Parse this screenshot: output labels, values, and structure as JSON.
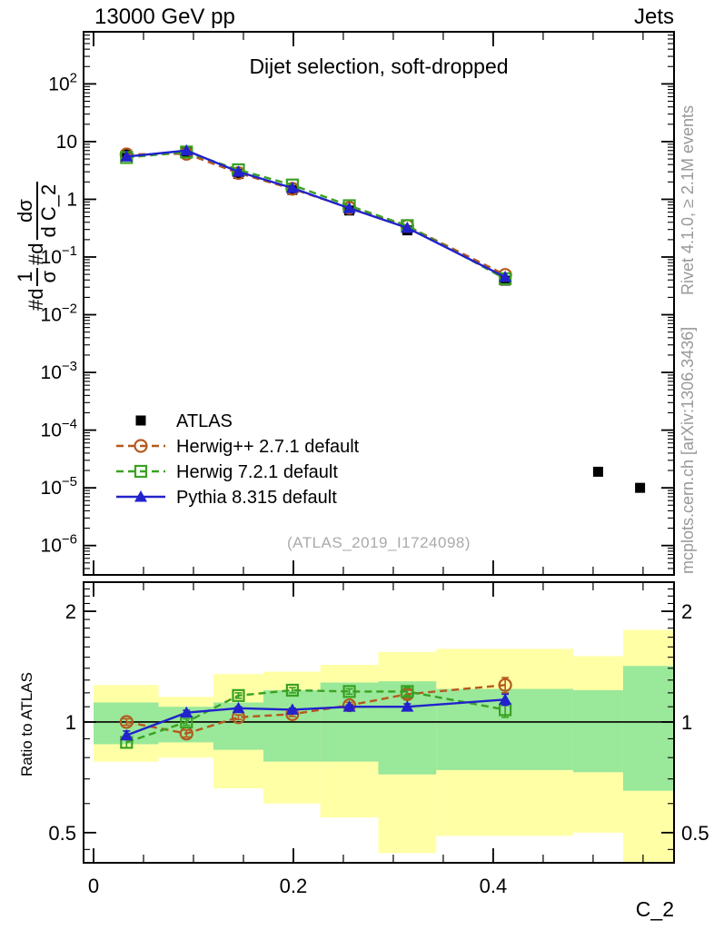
{
  "header": {
    "left": "13000 GeV pp",
    "right": "Jets"
  },
  "panel_title": "Dijet selection, soft-dropped",
  "watermark": "(ATLAS_2019_I1724098)",
  "side_notes": {
    "top_right": "Rivet 4.1.0, ≥ 2.1M events",
    "bottom_right": "mcplots.cern.ch [arXiv:1306.3436]"
  },
  "ylabel_parts": {
    "t1": "#d",
    "f1_num": "1",
    "f1_den": "σ",
    "t2": "#d",
    "f2_num": "dσ",
    "f2_den": "d C_2"
  },
  "ratio_ylabel": "Ratio to ATLAS",
  "xlabel": "C_2",
  "colors": {
    "atlas": "#000000",
    "herwigpp": "#b4591e",
    "herwig7": "#3aa122",
    "pythia": "#2222cc",
    "band_yellow": "#ffffa6",
    "band_green": "#9ae89a",
    "ref_line": "#000000",
    "note_gray": "#999999",
    "watermark_gray": "#aaaaaa"
  },
  "legend": [
    {
      "label": "ATLAS",
      "marker": "square_filled",
      "line": "none",
      "color_key": "atlas"
    },
    {
      "label": "Herwig++ 2.7.1 default",
      "marker": "circle_open",
      "line": "dashed",
      "color_key": "herwigpp"
    },
    {
      "label": "Herwig 7.2.1 default",
      "marker": "square_open",
      "line": "dashed",
      "color_key": "herwig7"
    },
    {
      "label": "Pythia 8.315 default",
      "marker": "triangle_filled",
      "line": "solid",
      "color_key": "pythia"
    }
  ],
  "chart_data": {
    "type": "line",
    "title": "Dijet selection, soft-dropped",
    "xlabel": "C_2",
    "ylabel": "1/sigma dsigma/dC_2",
    "main_panel": {
      "x_range": [
        -0.01,
        0.581
      ],
      "y_log_range": [
        3.1e-07,
        800
      ],
      "xticks": [
        {
          "v": 0,
          "label": "0"
        },
        {
          "v": 0.2,
          "label": "0.2"
        },
        {
          "v": 0.4,
          "label": "0.4"
        }
      ],
      "minor_x_step": 0.05,
      "yticks": [
        {
          "v": 100,
          "base": "10",
          "sup": "2"
        },
        {
          "v": 10,
          "base": "10",
          "sup": ""
        },
        {
          "v": 1,
          "base": "1",
          "sup": ""
        },
        {
          "v": 0.1,
          "base": "10",
          "sup": "−1"
        },
        {
          "v": 0.01,
          "base": "10",
          "sup": "−2"
        },
        {
          "v": 0.001,
          "base": "10",
          "sup": "−3"
        },
        {
          "v": 0.0001,
          "base": "10",
          "sup": "−4"
        },
        {
          "v": 1e-05,
          "base": "10",
          "sup": "−5"
        },
        {
          "v": 1e-06,
          "base": "10",
          "sup": "−6"
        }
      ],
      "series": [
        {
          "name": "ATLAS",
          "color_key": "atlas",
          "marker": "square_filled",
          "line": "none",
          "x": [
            0.033,
            0.093,
            0.145,
            0.199,
            0.256,
            0.314,
            0.412,
            0.505,
            0.547
          ],
          "y": [
            6.0,
            6.6,
            2.75,
            1.45,
            0.64,
            0.29,
            0.039,
            1.9e-05,
            1e-05
          ]
        },
        {
          "name": "Herwig++ 2.7.1 default",
          "color_key": "herwigpp",
          "marker": "circle_open",
          "line": "dashed",
          "x": [
            0.033,
            0.093,
            0.145,
            0.199,
            0.256,
            0.314,
            0.412
          ],
          "y": [
            6.0,
            6.15,
            2.85,
            1.52,
            0.71,
            0.345,
            0.049
          ]
        },
        {
          "name": "Herwig 7.2.1 default",
          "color_key": "herwig7",
          "marker": "square_open",
          "line": "dashed",
          "x": [
            0.033,
            0.093,
            0.145,
            0.199,
            0.256,
            0.314,
            0.412
          ],
          "y": [
            5.3,
            6.6,
            3.25,
            1.77,
            0.775,
            0.35,
            0.042
          ]
        },
        {
          "name": "Pythia 8.315 default",
          "color_key": "pythia",
          "marker": "triangle_filled",
          "line": "solid",
          "x": [
            0.033,
            0.093,
            0.145,
            0.199,
            0.256,
            0.314,
            0.412
          ],
          "y": [
            5.5,
            7.0,
            3.0,
            1.57,
            0.7,
            0.32,
            0.045
          ]
        }
      ]
    },
    "ratio_panel": {
      "y_log_range": [
        0.414,
        2.4
      ],
      "ref_line": 1,
      "yticks": [
        {
          "v": 2,
          "label": "2"
        },
        {
          "v": 1,
          "label": "1"
        },
        {
          "v": 0.5,
          "label": "0.5"
        }
      ],
      "minor_yticks": [
        0.45,
        0.6,
        0.7,
        0.8,
        0.9,
        1.1,
        1.2,
        1.3,
        1.4,
        1.5,
        1.6,
        1.7,
        1.8,
        1.9,
        2.1,
        2.2,
        2.3
      ],
      "bands": [
        {
          "x0": 0.0,
          "x1": 0.065,
          "yellow": [
            0.78,
            1.26
          ],
          "green": [
            0.87,
            1.13
          ]
        },
        {
          "x0": 0.065,
          "x1": 0.12,
          "yellow": [
            0.8,
            1.17
          ],
          "green": [
            0.88,
            1.1
          ]
        },
        {
          "x0": 0.12,
          "x1": 0.17,
          "yellow": [
            0.66,
            1.35
          ],
          "green": [
            0.84,
            1.13
          ]
        },
        {
          "x0": 0.17,
          "x1": 0.227,
          "yellow": [
            0.6,
            1.37
          ],
          "green": [
            0.78,
            1.22
          ]
        },
        {
          "x0": 0.227,
          "x1": 0.285,
          "yellow": [
            0.55,
            1.43
          ],
          "green": [
            0.78,
            1.28
          ]
        },
        {
          "x0": 0.285,
          "x1": 0.343,
          "yellow": [
            0.44,
            1.55
          ],
          "green": [
            0.72,
            1.29
          ]
        },
        {
          "x0": 0.343,
          "x1": 0.48,
          "yellow": [
            0.49,
            1.58
          ],
          "green": [
            0.74,
            1.23
          ]
        },
        {
          "x0": 0.48,
          "x1": 0.53,
          "yellow": [
            0.5,
            1.51
          ],
          "green": [
            0.73,
            1.22
          ]
        },
        {
          "x0": 0.53,
          "x1": 0.58,
          "yellow": [
            0.4,
            1.78
          ],
          "green": [
            0.65,
            1.42
          ]
        }
      ],
      "series": [
        {
          "name": "Herwig++ 2.7.1 default",
          "color_key": "herwigpp",
          "marker": "circle_open",
          "line": "dashed",
          "x": [
            0.033,
            0.093,
            0.145,
            0.199,
            0.256,
            0.314,
            0.412
          ],
          "y": [
            1.0,
            0.93,
            1.03,
            1.05,
            1.11,
            1.19,
            1.26
          ],
          "err": [
            0.02,
            0.02,
            0.015,
            0.015,
            0.02,
            0.03,
            0.06
          ]
        },
        {
          "name": "Herwig 7.2.1 default",
          "color_key": "herwig7",
          "marker": "square_open",
          "line": "dashed",
          "x": [
            0.033,
            0.093,
            0.145,
            0.199,
            0.256,
            0.314,
            0.412
          ],
          "y": [
            0.88,
            1.0,
            1.18,
            1.22,
            1.21,
            1.21,
            1.08
          ],
          "err": [
            0.03,
            0.02,
            0.02,
            0.02,
            0.02,
            0.03,
            0.05
          ]
        },
        {
          "name": "Pythia 8.315 default",
          "color_key": "pythia",
          "marker": "triangle_filled",
          "line": "solid",
          "x": [
            0.033,
            0.093,
            0.145,
            0.199,
            0.256,
            0.314,
            0.412
          ],
          "y": [
            0.92,
            1.06,
            1.09,
            1.08,
            1.1,
            1.1,
            1.15
          ],
          "err": [
            0.025,
            0.015,
            0.01,
            0.01,
            0.012,
            0.02,
            0.04
          ]
        }
      ]
    }
  }
}
